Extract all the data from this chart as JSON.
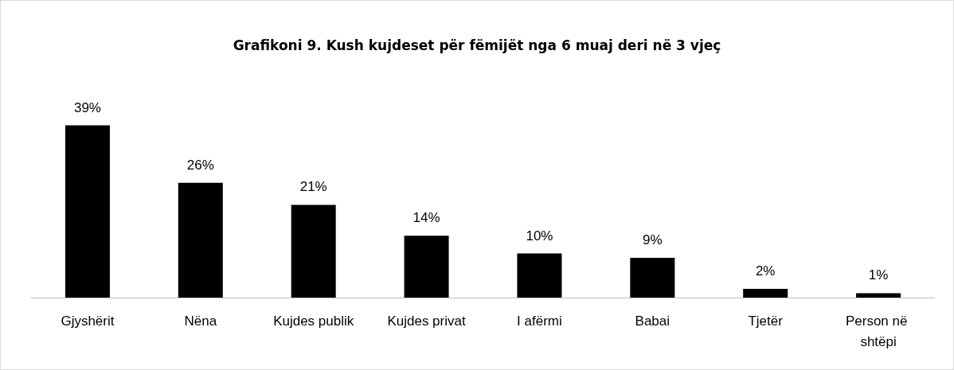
{
  "chart_data": {
    "type": "bar",
    "title": "Grafikoni 9. Kush kujdeset për fëmijët nga 6 muaj deri në 3 vjeç",
    "categories": [
      "Gjyshërit",
      "Nëna",
      "Kujdes publik",
      "Kujdes privat",
      "I afërmi",
      "Babai",
      "Tjetër",
      "Person në shtëpi"
    ],
    "values": [
      39,
      26,
      21,
      14,
      10,
      9,
      2,
      1
    ],
    "value_labels": [
      "39%",
      "26%",
      "21%",
      "14%",
      "10%",
      "9%",
      "2%",
      "1%"
    ],
    "color": "#000000",
    "grid": false
  }
}
